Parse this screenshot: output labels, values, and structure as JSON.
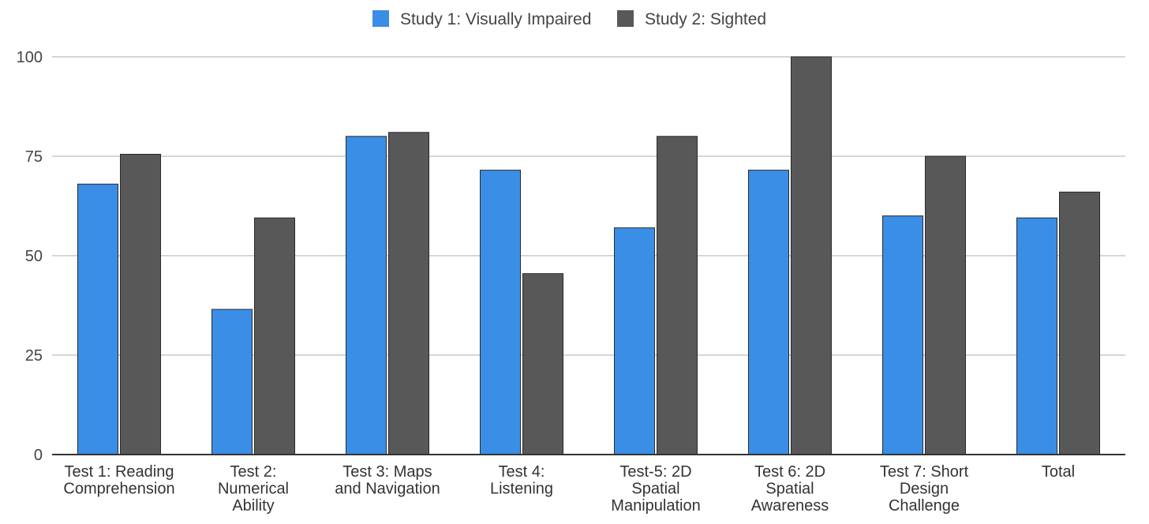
{
  "chart_data": {
    "type": "bar",
    "title": "",
    "xlabel": "",
    "ylabel": "",
    "ylim": [
      0,
      100
    ],
    "yticks": [
      0,
      25,
      50,
      75,
      100
    ],
    "grid": true,
    "legend_position": "top-center",
    "categories": [
      [
        "Test 1: Reading",
        "Comprehension"
      ],
      [
        "Test 2:",
        "Numerical",
        "Ability"
      ],
      [
        "Test 3: Maps",
        "and Navigation"
      ],
      [
        "Test 4:",
        "Listening"
      ],
      [
        "Test-5: 2D",
        "Spatial",
        "Manipulation"
      ],
      [
        "Test 6: 2D",
        "Spatial",
        "Awareness"
      ],
      [
        "Test 7:  Short",
        "Design",
        "Challenge"
      ],
      [
        "Total"
      ]
    ],
    "series": [
      {
        "name": "Study 1: Visually Impaired",
        "color": "#3a8ee6",
        "values": [
          68,
          36.5,
          80,
          71.5,
          57,
          71.5,
          60,
          59.5
        ]
      },
      {
        "name": "Study 2: Sighted",
        "color": "#585858",
        "values": [
          75.5,
          59.5,
          81,
          45.5,
          80,
          100,
          75,
          66
        ]
      }
    ]
  }
}
